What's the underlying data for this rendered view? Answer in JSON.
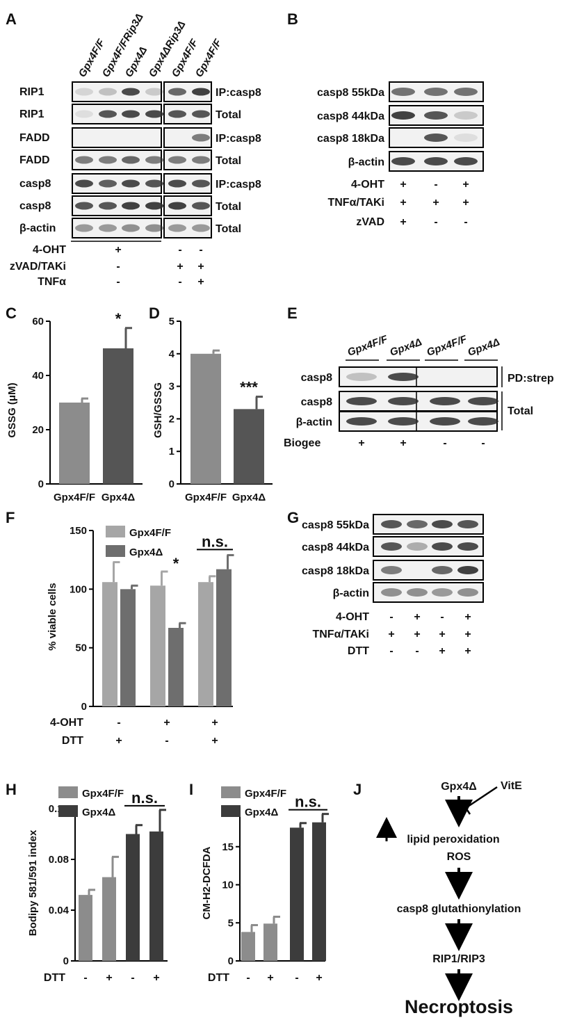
{
  "panel_letters": [
    "A",
    "B",
    "C",
    "D",
    "E",
    "F",
    "G",
    "H",
    "I",
    "J"
  ],
  "panelA": {
    "lane_headers": [
      "Gpx4F/F",
      "Gpx4F/FRip3Δ",
      "Gpx4Δ",
      "Gpx4ΔRip3Δ",
      "Gpx4F/F",
      "Gpx4F/F"
    ],
    "rows": [
      {
        "left": "RIP1",
        "right": "IP:casp8"
      },
      {
        "left": "RIP1",
        "right": "Total"
      },
      {
        "left": "FADD",
        "right": "IP:casp8"
      },
      {
        "left": "FADD",
        "right": "Total"
      },
      {
        "left": "casp8",
        "right": "IP:casp8"
      },
      {
        "left": "casp8",
        "right": "Total"
      },
      {
        "left": "β-actin",
        "right": "Total"
      }
    ],
    "treatments": [
      {
        "label": "4-OHT",
        "marks": [
          "+",
          "-",
          "-"
        ]
      },
      {
        "label": "zVAD/TAKi",
        "marks": [
          "-",
          "+",
          "+"
        ]
      },
      {
        "label": "TNFα",
        "marks": [
          "-",
          "-",
          "+"
        ]
      }
    ]
  },
  "panelB": {
    "rows": [
      "casp8 55kDa",
      "casp8 44kDa",
      "casp8 18kDa",
      "β-actin"
    ],
    "treatments": [
      {
        "label": "4-OHT",
        "marks": [
          "+",
          "-",
          "+"
        ]
      },
      {
        "label": "TNFα/TAKi",
        "marks": [
          "+",
          "+",
          "+"
        ]
      },
      {
        "label": "zVAD",
        "marks": [
          "+",
          "-",
          "-"
        ]
      }
    ]
  },
  "panelE": {
    "lane_headers": [
      "Gpx4F/F",
      "Gpx4Δ",
      "Gpx4F/F",
      "Gpx4Δ"
    ],
    "rows": [
      "casp8",
      "casp8",
      "β-actin"
    ],
    "right_labels": [
      "PD:strep",
      "Total"
    ],
    "treatments": [
      {
        "label": "Biogee",
        "marks": [
          "+",
          "+",
          "-",
          "-"
        ]
      }
    ]
  },
  "panelG": {
    "rows": [
      "casp8 55kDa",
      "casp8 44kDa",
      "casp8 18kDa",
      "β-actin"
    ],
    "treatments": [
      {
        "label": "4-OHT",
        "marks": [
          "-",
          "+",
          "-",
          "+"
        ]
      },
      {
        "label": "TNFα/TAKi",
        "marks": [
          "+",
          "+",
          "+",
          "+"
        ]
      },
      {
        "label": "DTT",
        "marks": [
          "-",
          "-",
          "+",
          "+"
        ]
      }
    ]
  },
  "panelJ": {
    "start": "Gpx4Δ",
    "inhibitor": "VitE",
    "step1a": "lipid peroxidation",
    "step1b": "ROS",
    "step2": "casp8 glutathionylation",
    "step3": "RIP1/RIP3",
    "end": "Necroptosis"
  },
  "chart_data": [
    {
      "panel": "C",
      "type": "bar",
      "categories": [
        "Gpx4F/F",
        "Gpx4Δ"
      ],
      "values": [
        30,
        50
      ],
      "errors": [
        1.5,
        7.5
      ],
      "ylabel": "GSSG (μM)",
      "ylim": [
        0,
        60
      ],
      "yticks": [
        0,
        20,
        40,
        60
      ],
      "annotations": [
        "",
        "*"
      ],
      "colors": [
        "#8c8c8c",
        "#555555"
      ]
    },
    {
      "panel": "D",
      "type": "bar",
      "categories": [
        "Gpx4F/F",
        "Gpx4Δ"
      ],
      "values": [
        4.0,
        2.3
      ],
      "errors": [
        0.1,
        0.38
      ],
      "ylabel": "GSH/GSSG",
      "ylim": [
        0,
        5
      ],
      "yticks": [
        0,
        1,
        2,
        3,
        4,
        5
      ],
      "annotations": [
        "",
        "***"
      ],
      "colors": [
        "#8c8c8c",
        "#555555"
      ]
    },
    {
      "panel": "F",
      "type": "bar",
      "groups": 3,
      "series": [
        {
          "name": "Gpx4F/F",
          "values": [
            106,
            103,
            106
          ],
          "errors": [
            17,
            12,
            5
          ],
          "color": "#a6a6a6"
        },
        {
          "name": "Gpx4Δ",
          "values": [
            100,
            67,
            117
          ],
          "errors": [
            3,
            4,
            12
          ],
          "color": "#6e6e6e"
        }
      ],
      "ylabel": "% viable cells",
      "ylim": [
        0,
        150
      ],
      "yticks": [
        0,
        50,
        100,
        150
      ],
      "treatments": [
        {
          "label": "4-OHT",
          "marks": [
            "-",
            "+",
            "+"
          ]
        },
        {
          "label": "DTT",
          "marks": [
            "+",
            "-",
            "+"
          ]
        }
      ],
      "annotations": [
        {
          "text": "*",
          "group": 1
        },
        {
          "text": "n.s.",
          "group": 2
        }
      ]
    },
    {
      "panel": "H",
      "type": "bar",
      "series_legend": [
        {
          "name": "Gpx4F/F",
          "color": "#8c8c8c"
        },
        {
          "name": "Gpx4Δ",
          "color": "#3c3c3c"
        }
      ],
      "bars": [
        {
          "value": 0.052,
          "error": 0.004,
          "color": "#8c8c8c"
        },
        {
          "value": 0.066,
          "error": 0.016,
          "color": "#8c8c8c"
        },
        {
          "value": 0.1,
          "error": 0.007,
          "color": "#3c3c3c"
        },
        {
          "value": 0.102,
          "error": 0.017,
          "color": "#3c3c3c"
        }
      ],
      "ylabel": "Bodipy 581/591 index",
      "ylim": [
        0,
        0.12
      ],
      "yticks": [
        "0",
        "0.04",
        "0.08",
        "0.12"
      ],
      "treatments": [
        {
          "label": "DTT",
          "marks": [
            "-",
            "+",
            "-",
            "+"
          ]
        }
      ],
      "annotations": [
        "n.s."
      ]
    },
    {
      "panel": "I",
      "type": "bar",
      "series_legend": [
        {
          "name": "Gpx4F/F",
          "color": "#8c8c8c"
        },
        {
          "name": "Gpx4Δ",
          "color": "#3c3c3c"
        }
      ],
      "bars": [
        {
          "value": 3.8,
          "error": 0.9,
          "color": "#8c8c8c"
        },
        {
          "value": 4.9,
          "error": 0.9,
          "color": "#8c8c8c"
        },
        {
          "value": 17.5,
          "error": 0.6,
          "color": "#3c3c3c"
        },
        {
          "value": 18.2,
          "error": 1.1,
          "color": "#3c3c3c"
        }
      ],
      "ylabel": "CM-H2-DCFDA",
      "ylim": [
        0,
        20
      ],
      "yticks": [
        "0",
        "5",
        "10",
        "15",
        "20"
      ],
      "treatments": [
        {
          "label": "DTT",
          "marks": [
            "-",
            "+",
            "-",
            "+"
          ]
        }
      ],
      "annotations": [
        "n.s."
      ]
    }
  ]
}
